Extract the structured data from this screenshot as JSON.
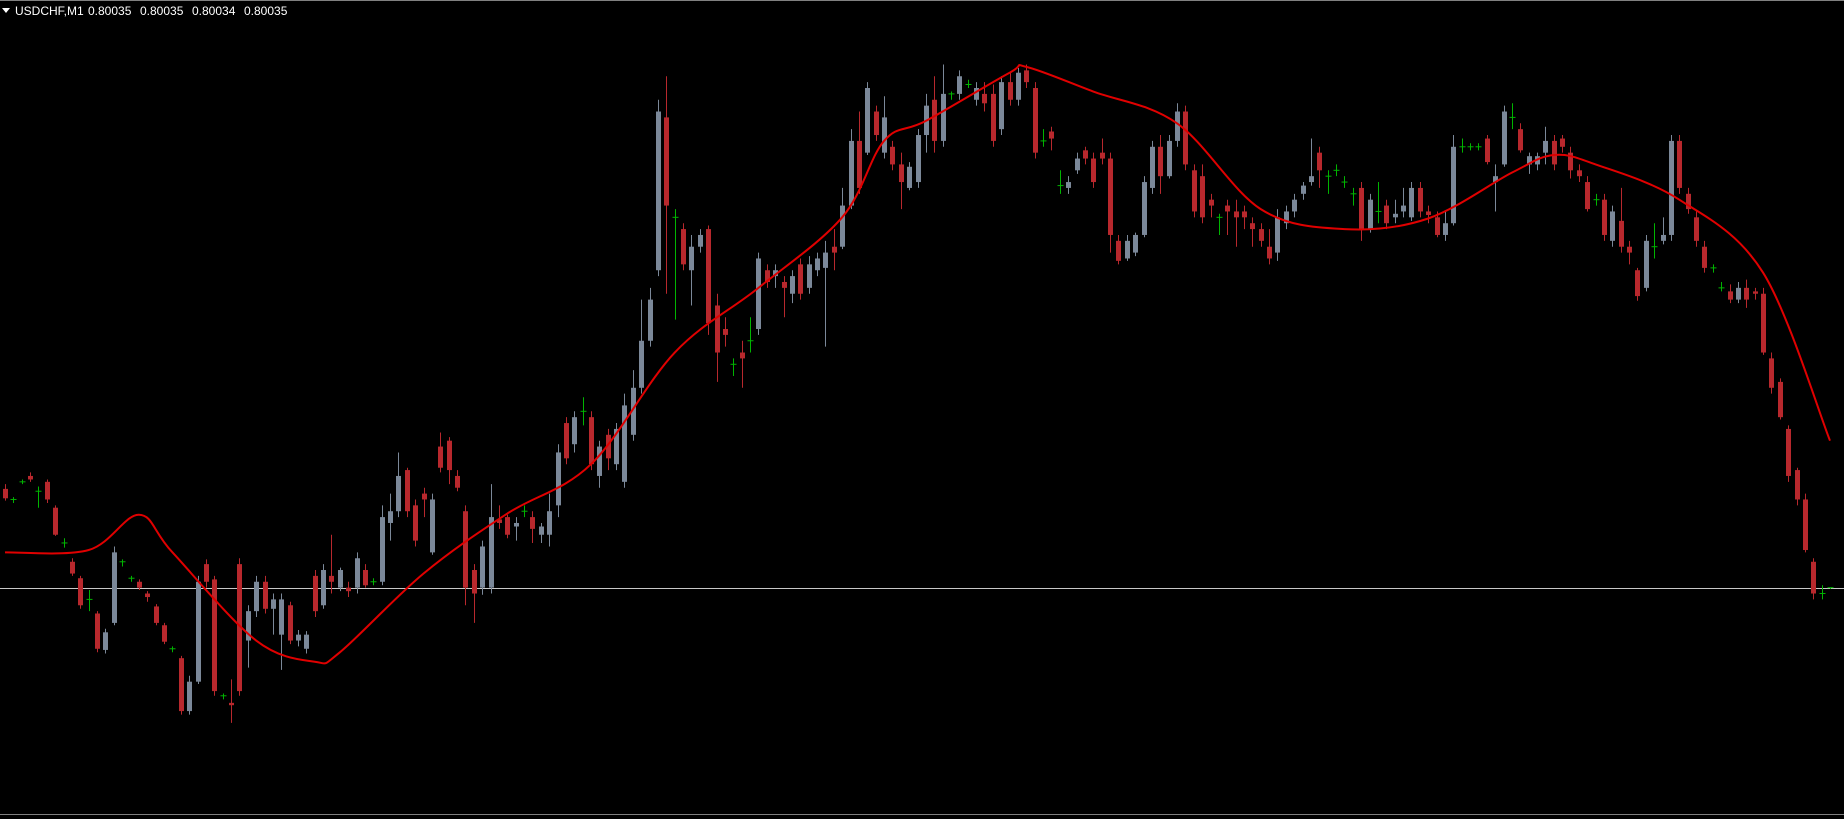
{
  "chart_data": {
    "type": "candlestick",
    "symbol": "USDCHF,M1",
    "ylim": [
      0.79845,
      0.80517
    ],
    "up_color": "#7b8899",
    "down_color": "#b8282d",
    "doji_color": "#00b400",
    "bid_line_color": "#c8c8c8",
    "open": [
      0.80119,
      0.8011,
      0.80125,
      0.8013,
      0.80117,
      0.80125,
      0.80103,
      0.80073,
      0.80057,
      0.80043,
      0.80025,
      0.80013,
      0.79982,
      0.80005,
      0.80057,
      0.80043,
      0.8004,
      0.8003,
      0.80019,
      0.80003,
      0.79983,
      0.79975,
      0.7993,
      0.79955,
      0.80055,
      0.80042,
      0.79943,
      0.79937,
      0.80055,
      0.7999,
      0.80015,
      0.8004,
      0.80017,
      0.79995,
      0.8002,
      0.7999,
      0.79983,
      0.80045,
      0.8002,
      0.80045,
      0.80035,
      0.80035,
      0.80035,
      0.8005,
      0.8004,
      0.8004,
      0.8009,
      0.801,
      0.80135,
      0.80105,
      0.80115,
      0.80065,
      0.80155,
      0.8016,
      0.8013,
      0.801,
      0.8005,
      0.80035,
      0.80035,
      0.80093,
      0.80095,
      0.80087,
      0.801,
      0.80095,
      0.8008,
      0.8008,
      0.80105,
      0.80175,
      0.80157,
      0.80185,
      0.8018,
      0.8013,
      0.80165,
      0.8014,
      0.80125,
      0.80165,
      0.80205,
      0.80245,
      0.80305,
      0.80435,
      0.8035,
      0.8034,
      0.80305,
      0.80325,
      0.8034,
      0.80275,
      0.80255,
      0.80225,
      0.80235,
      0.80245,
      0.80255,
      0.80305,
      0.803,
      0.80295,
      0.80285,
      0.8031,
      0.8029,
      0.80305,
      0.80307,
      0.80325,
      0.80325,
      0.8036,
      0.80415,
      0.80405,
      0.8044,
      0.80405,
      0.8041,
      0.80395,
      0.80375,
      0.8038,
      0.8042,
      0.8045,
      0.80415,
      0.80455,
      0.80455,
      0.80463,
      0.8045,
      0.80455,
      0.80455,
      0.80425,
      0.80465,
      0.8045,
      0.80475,
      0.8046,
      0.80415,
      0.80423,
      0.80377,
      0.80375,
      0.8039,
      0.80407,
      0.804,
      0.80405,
      0.804,
      0.8033,
      0.80315,
      0.8032,
      0.80335,
      0.80375,
      0.8041,
      0.80385,
      0.80415,
      0.8044,
      0.8039,
      0.80385,
      0.80365,
      0.8035,
      0.8036,
      0.80355,
      0.80355,
      0.80345,
      0.8034,
      0.80325,
      0.8032,
      0.80345,
      0.80355,
      0.8037,
      0.8038,
      0.80405,
      0.80385,
      0.8039,
      0.8038,
      0.8037,
      0.80375,
      0.8034,
      0.80355,
      0.8036,
      0.8035,
      0.80355,
      0.8035,
      0.80375,
      0.80355,
      0.8035,
      0.80335,
      0.80345,
      0.8041,
      0.8041,
      0.8041,
      0.80417,
      0.8038,
      0.80395,
      0.80435,
      0.80425,
      0.80395,
      0.80395,
      0.80405,
      0.80415,
      0.80417,
      0.80405,
      0.8039,
      0.8038,
      0.80365,
      0.80365,
      0.8033,
      0.80347,
      0.80325,
      0.80305,
      0.8029,
      0.80325,
      0.8033,
      0.80335,
      0.80415,
      0.8037,
      0.8035,
      0.80325,
      0.80307,
      0.8029,
      0.80287,
      0.8028,
      0.8029,
      0.80287,
      0.80285,
      0.8023,
      0.8021,
      0.8017,
      0.80135,
      0.8011,
      0.80057,
      0.8003,
      0.80035
    ],
    "high": [
      0.80123,
      0.80112,
      0.80127,
      0.80133,
      0.80121,
      0.80127,
      0.80105,
      0.80077,
      0.8006,
      0.80045,
      0.80033,
      0.80015,
      0.8,
      0.8007,
      0.80059,
      0.80045,
      0.80042,
      0.80032,
      0.80021,
      0.80005,
      0.79985,
      0.79977,
      0.7996,
      0.80045,
      0.80059,
      0.80045,
      0.79945,
      0.79957,
      0.8006,
      0.8002,
      0.80045,
      0.80045,
      0.8003,
      0.8003,
      0.80023,
      0.79999,
      0.79998,
      0.8005,
      0.80055,
      0.8008,
      0.80052,
      0.8004,
      0.80065,
      0.80055,
      0.80043,
      0.80105,
      0.80115,
      0.8015,
      0.80137,
      0.8011,
      0.8012,
      0.80115,
      0.80167,
      0.80163,
      0.80135,
      0.80105,
      0.80055,
      0.80075,
      0.80123,
      0.80105,
      0.80097,
      0.80095,
      0.80105,
      0.801,
      0.8009,
      0.80115,
      0.80157,
      0.8018,
      0.80185,
      0.80197,
      0.80185,
      0.8016,
      0.8017,
      0.80175,
      0.802,
      0.8022,
      0.8028,
      0.8029,
      0.8045,
      0.8047,
      0.80357,
      0.80345,
      0.80335,
      0.8034,
      0.80343,
      0.80285,
      0.80265,
      0.8023,
      0.80245,
      0.80265,
      0.8032,
      0.8031,
      0.8031,
      0.803,
      0.80305,
      0.80315,
      0.80317,
      0.8032,
      0.8033,
      0.8034,
      0.80375,
      0.80425,
      0.8044,
      0.80465,
      0.80445,
      0.80453,
      0.80415,
      0.80405,
      0.80397,
      0.80425,
      0.80455,
      0.8047,
      0.8048,
      0.80457,
      0.80475,
      0.80467,
      0.80465,
      0.80465,
      0.80463,
      0.8047,
      0.80473,
      0.80477,
      0.8048,
      0.80465,
      0.80425,
      0.80427,
      0.8039,
      0.80385,
      0.80405,
      0.8041,
      0.80405,
      0.80417,
      0.80405,
      0.80335,
      0.80335,
      0.80337,
      0.80385,
      0.80415,
      0.8042,
      0.8042,
      0.80447,
      0.80445,
      0.80395,
      0.80395,
      0.8037,
      0.80353,
      0.80365,
      0.80365,
      0.8036,
      0.8035,
      0.80345,
      0.8034,
      0.80357,
      0.8036,
      0.8037,
      0.8038,
      0.80417,
      0.8041,
      0.8039,
      0.80395,
      0.80385,
      0.80375,
      0.8038,
      0.8037,
      0.8038,
      0.80365,
      0.80365,
      0.80375,
      0.8038,
      0.8038,
      0.8036,
      0.80355,
      0.80355,
      0.8042,
      0.80417,
      0.80413,
      0.80413,
      0.8042,
      0.80395,
      0.80445,
      0.80447,
      0.8043,
      0.80405,
      0.80405,
      0.80427,
      0.8042,
      0.8042,
      0.8041,
      0.80395,
      0.80385,
      0.8037,
      0.8037,
      0.8036,
      0.80375,
      0.8033,
      0.80307,
      0.80335,
      0.80345,
      0.8035,
      0.8042,
      0.8042,
      0.80375,
      0.80355,
      0.8033,
      0.8031,
      0.80295,
      0.80293,
      0.80295,
      0.80297,
      0.8029,
      0.8029,
      0.80235,
      0.80213,
      0.80173,
      0.80137,
      0.80115,
      0.8006,
      0.80037,
      0.80035
    ],
    "low": [
      0.80109,
      0.80107,
      0.80123,
      0.80125,
      0.80103,
      0.80107,
      0.80079,
      0.80069,
      0.80045,
      0.80017,
      0.80015,
      0.7998,
      0.79979,
      0.80003,
      0.80053,
      0.8004,
      0.80033,
      0.80023,
      0.80003,
      0.79987,
      0.7998,
      0.79927,
      0.79927,
      0.79953,
      0.80035,
      0.79943,
      0.7994,
      0.7992,
      0.79943,
      0.79967,
      0.8001,
      0.80013,
      0.79995,
      0.79965,
      0.79987,
      0.79985,
      0.79979,
      0.8001,
      0.80017,
      0.8003,
      0.80032,
      0.80027,
      0.8003,
      0.80035,
      0.80037,
      0.80037,
      0.80075,
      0.80095,
      0.80095,
      0.8007,
      0.80095,
      0.80063,
      0.80133,
      0.80123,
      0.80117,
      0.8002,
      0.80005,
      0.80029,
      0.8003,
      0.80085,
      0.80077,
      0.80075,
      0.80095,
      0.80073,
      0.80073,
      0.8007,
      0.80095,
      0.8014,
      0.8015,
      0.80173,
      0.80135,
      0.8012,
      0.80135,
      0.80135,
      0.8012,
      0.8016,
      0.802,
      0.8024,
      0.803,
      0.80285,
      0.80263,
      0.80305,
      0.80275,
      0.8032,
      0.8025,
      0.8021,
      0.8024,
      0.80215,
      0.80205,
      0.80235,
      0.8025,
      0.8029,
      0.8029,
      0.80265,
      0.80277,
      0.8028,
      0.80285,
      0.803,
      0.8024,
      0.80305,
      0.80323,
      0.80357,
      0.8037,
      0.80403,
      0.80415,
      0.804,
      0.8039,
      0.80357,
      0.80373,
      0.80375,
      0.80405,
      0.80405,
      0.8041,
      0.8045,
      0.8045,
      0.8046,
      0.80445,
      0.8044,
      0.8041,
      0.8042,
      0.80445,
      0.80445,
      0.8046,
      0.804,
      0.8041,
      0.80407,
      0.8037,
      0.8037,
      0.80387,
      0.80395,
      0.80375,
      0.80395,
      0.8032,
      0.8031,
      0.80313,
      0.80317,
      0.80333,
      0.8037,
      0.8037,
      0.80383,
      0.8041,
      0.8039,
      0.8035,
      0.80345,
      0.8035,
      0.80335,
      0.80335,
      0.80325,
      0.8034,
      0.80325,
      0.80325,
      0.8031,
      0.80313,
      0.8034,
      0.8035,
      0.80365,
      0.80377,
      0.80375,
      0.8037,
      0.80385,
      0.80375,
      0.8036,
      0.8033,
      0.80337,
      0.80345,
      0.8034,
      0.80345,
      0.8035,
      0.80347,
      0.8035,
      0.80345,
      0.80333,
      0.8033,
      0.80343,
      0.80405,
      0.80407,
      0.80407,
      0.80395,
      0.80355,
      0.80393,
      0.80425,
      0.80405,
      0.80387,
      0.8039,
      0.80395,
      0.8039,
      0.80405,
      0.80383,
      0.8038,
      0.80355,
      0.8036,
      0.8033,
      0.80325,
      0.8032,
      0.8031,
      0.80279,
      0.80287,
      0.80315,
      0.80327,
      0.8033,
      0.8037,
      0.80353,
      0.80325,
      0.80303,
      0.80303,
      0.80287,
      0.80277,
      0.80277,
      0.80273,
      0.8028,
      0.80233,
      0.802,
      0.80178,
      0.80125,
      0.80105,
      0.80065,
      0.80025,
      0.80025,
      0.80034
    ],
    "close": [
      0.80111,
      0.8011,
      0.80125,
      0.80127,
      0.80117,
      0.8011,
      0.8008,
      0.80073,
      0.80047,
      0.8002,
      0.80025,
      0.79983,
      0.79997,
      0.80065,
      0.80057,
      0.80043,
      0.80035,
      0.80027,
      0.80005,
      0.79989,
      0.79983,
      0.7993,
      0.79955,
      0.8004,
      0.8004,
      0.79947,
      0.79943,
      0.79935,
      0.79947,
      0.80015,
      0.8004,
      0.80017,
      0.80025,
      0.80025,
      0.7999,
      0.79995,
      0.79995,
      0.80015,
      0.8005,
      0.8004,
      0.8005,
      0.80032,
      0.8006,
      0.80037,
      0.8004,
      0.80095,
      0.801,
      0.8013,
      0.801,
      0.80075,
      0.8011,
      0.8011,
      0.80137,
      0.80135,
      0.8012,
      0.80035,
      0.8003,
      0.8007,
      0.80095,
      0.8009,
      0.8008,
      0.8009,
      0.801,
      0.80085,
      0.80087,
      0.801,
      0.8015,
      0.80145,
      0.8018,
      0.80185,
      0.8014,
      0.80155,
      0.80145,
      0.8017,
      0.8019,
      0.80205,
      0.80245,
      0.8028,
      0.8044,
      0.8036,
      0.8035,
      0.8031,
      0.80325,
      0.80335,
      0.8026,
      0.80235,
      0.8025,
      0.80225,
      0.8023,
      0.80245,
      0.80315,
      0.80295,
      0.80305,
      0.8029,
      0.803,
      0.80285,
      0.8031,
      0.80315,
      0.8032,
      0.8032,
      0.8036,
      0.80415,
      0.80375,
      0.8046,
      0.8042,
      0.80435,
      0.80395,
      0.8038,
      0.80393,
      0.8042,
      0.80445,
      0.80415,
      0.80455,
      0.80455,
      0.8047,
      0.80463,
      0.8046,
      0.80447,
      0.80415,
      0.80465,
      0.8045,
      0.80473,
      0.80465,
      0.80405,
      0.80415,
      0.80417,
      0.80377,
      0.8038,
      0.804,
      0.804,
      0.8038,
      0.804,
      0.80335,
      0.80313,
      0.8033,
      0.80335,
      0.8038,
      0.8041,
      0.80385,
      0.80415,
      0.8044,
      0.80395,
      0.80355,
      0.8035,
      0.8036,
      0.8035,
      0.80355,
      0.8035,
      0.8035,
      0.8034,
      0.8033,
      0.80315,
      0.8035,
      0.80355,
      0.80365,
      0.80377,
      0.80385,
      0.8039,
      0.80385,
      0.8039,
      0.8038,
      0.8037,
      0.8034,
      0.80365,
      0.80355,
      0.80345,
      0.80353,
      0.8036,
      0.80375,
      0.80355,
      0.80352,
      0.80335,
      0.80345,
      0.8041,
      0.8041,
      0.8041,
      0.8041,
      0.80397,
      0.80385,
      0.8044,
      0.80435,
      0.80407,
      0.80402,
      0.80402,
      0.80415,
      0.80395,
      0.8041,
      0.8039,
      0.80385,
      0.80357,
      0.80365,
      0.80335,
      0.80355,
      0.80325,
      0.8032,
      0.80283,
      0.8033,
      0.80325,
      0.80335,
      0.80415,
      0.80375,
      0.80357,
      0.8033,
      0.80307,
      0.80307,
      0.8029,
      0.8028,
      0.8029,
      0.8028,
      0.80285,
      0.80235,
      0.80205,
      0.8018,
      0.8013,
      0.8011,
      0.80067,
      0.8003,
      0.8003,
      0.80035
    ],
    "moving_average": {
      "color": "#e00000",
      "x": [
        0,
        10,
        16,
        20,
        30,
        37,
        40,
        50,
        60,
        70,
        80,
        90,
        100,
        105,
        110,
        120,
        122,
        130,
        140,
        150,
        160,
        170,
        180,
        185,
        190,
        200,
        210,
        218
      ],
      "values": [
        0.80065,
        0.80067,
        0.80097,
        0.80065,
        0.7999,
        0.79972,
        0.7998,
        0.80047,
        0.80098,
        0.8014,
        0.80235,
        0.8029,
        0.8035,
        0.80415,
        0.80432,
        0.80473,
        0.80478,
        0.80457,
        0.8043,
        0.80357,
        0.8034,
        0.80349,
        0.80388,
        0.80403,
        0.80395,
        0.80365,
        0.80303,
        0.8016
      ]
    }
  }
}
